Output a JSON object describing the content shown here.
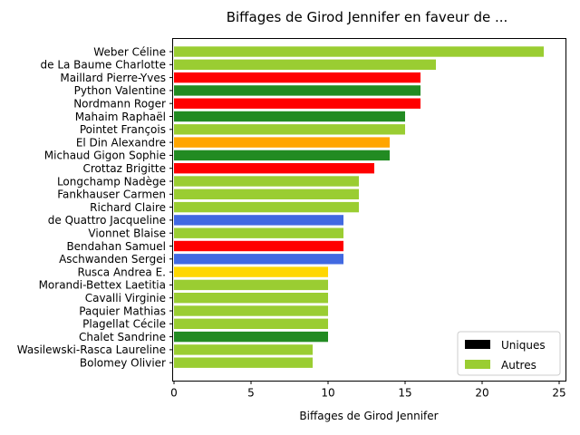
{
  "chart_data": {
    "type": "bar",
    "orientation": "horizontal",
    "title": "Biffages de Girod Jennifer en faveur de ...",
    "xlabel": "Biffages de Girod Jennifer",
    "ylabel": "",
    "xlim": [
      0,
      25.2
    ],
    "xticks": [
      0,
      5,
      10,
      15,
      20,
      25
    ],
    "grid": false,
    "legend": {
      "placement": "lower-right",
      "entries": [
        {
          "label": "Uniques",
          "color": "#000000"
        },
        {
          "label": "Autres",
          "color": "#9acd32"
        }
      ]
    },
    "categories": [
      "Weber Céline",
      "de La Baume Charlotte",
      "Maillard Pierre-Yves",
      "Python Valentine",
      "Nordmann Roger",
      "Mahaim Raphaël",
      "Pointet François",
      "El Din Alexandre",
      "Michaud Gigon Sophie",
      "Crottaz Brigitte",
      "Longchamp Nadège",
      "Fankhauser Carmen",
      "Richard Claire",
      "de Quattro Jacqueline",
      "Vionnet Blaise",
      "Bendahan Samuel",
      "Aschwanden Sergei",
      "Rusca Andrea E.",
      "Morandi-Bettex Laetitia",
      "Cavalli Virginie",
      "Paquier Mathias",
      "Plagellat Cécile",
      "Chalet Sandrine",
      "Wasilewski-Rasca Laureline",
      "Bolomey Olivier"
    ],
    "values": [
      24,
      17,
      16,
      16,
      16,
      15,
      15,
      14,
      14,
      13,
      12,
      12,
      12,
      11,
      11,
      11,
      11,
      10,
      10,
      10,
      10,
      10,
      10,
      9,
      9
    ],
    "colors": [
      "#9acd32",
      "#9acd32",
      "#ff0000",
      "#228b22",
      "#ff0000",
      "#228b22",
      "#9acd32",
      "#ffa500",
      "#228b22",
      "#ff0000",
      "#9acd32",
      "#9acd32",
      "#9acd32",
      "#4169e1",
      "#9acd32",
      "#ff0000",
      "#4169e1",
      "#ffd700",
      "#9acd32",
      "#9acd32",
      "#9acd32",
      "#9acd32",
      "#228b22",
      "#9acd32",
      "#9acd32"
    ]
  }
}
